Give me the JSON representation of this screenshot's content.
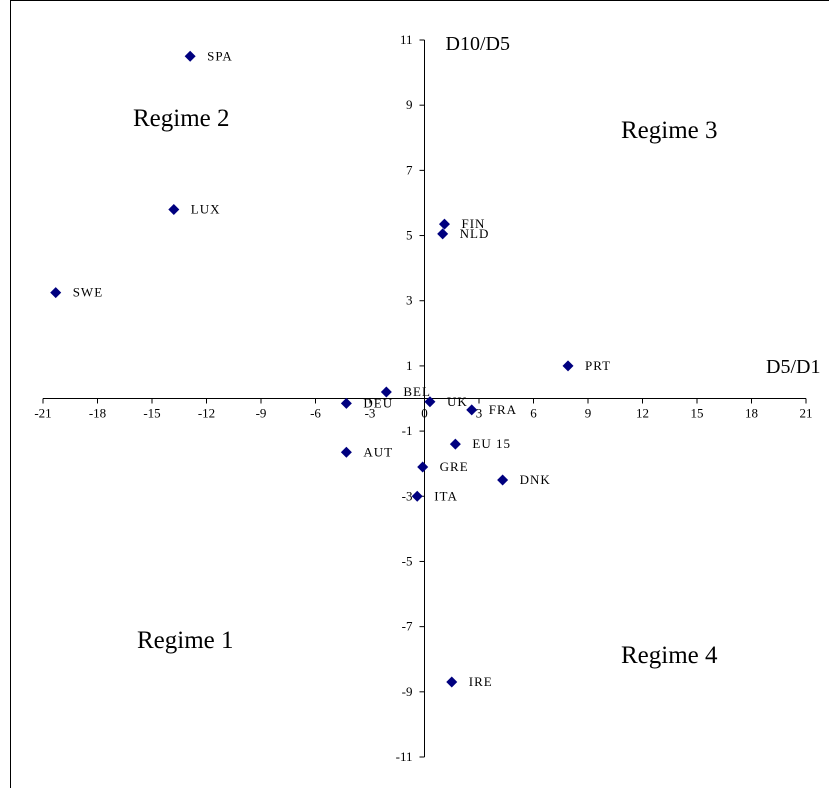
{
  "chart_data": {
    "type": "scatter",
    "xlabel": "D5/D1",
    "ylabel": "D10/D5",
    "xlim": [
      -21,
      21
    ],
    "ylim": [
      -11,
      11
    ],
    "x_ticks": [
      -21,
      -18,
      -15,
      -12,
      -9,
      -6,
      -3,
      0,
      3,
      6,
      9,
      12,
      15,
      18,
      21
    ],
    "y_ticks": [
      -11,
      -9,
      -7,
      -5,
      -3,
      -1,
      1,
      3,
      5,
      7,
      9,
      11
    ],
    "marker_color": "#00007f",
    "grid": false,
    "legend": "none",
    "points": [
      {
        "label": "SPA",
        "x": -12.9,
        "y": 10.5
      },
      {
        "label": "LUX",
        "x": -13.8,
        "y": 5.8
      },
      {
        "label": "SWE",
        "x": -20.3,
        "y": 3.25
      },
      {
        "label": "FIN",
        "x": 1.1,
        "y": 5.35
      },
      {
        "label": "NLD",
        "x": 1.0,
        "y": 5.05
      },
      {
        "label": "PRT",
        "x": 7.9,
        "y": 1.0
      },
      {
        "label": "BEL",
        "x": -2.1,
        "y": 0.2
      },
      {
        "label": "DEU",
        "x": -4.3,
        "y": -0.15
      },
      {
        "label": "UK",
        "x": 0.3,
        "y": -0.1
      },
      {
        "label": "FRA",
        "x": 2.6,
        "y": -0.35
      },
      {
        "label": "EU 15",
        "x": 1.7,
        "y": -1.4
      },
      {
        "label": "AUT",
        "x": -4.3,
        "y": -1.65
      },
      {
        "label": "GRE",
        "x": -0.1,
        "y": -2.1
      },
      {
        "label": "DNK",
        "x": 4.3,
        "y": -2.5
      },
      {
        "label": "ITA",
        "x": -0.4,
        "y": -3.0
      },
      {
        "label": "IRE",
        "x": 1.5,
        "y": -8.7
      }
    ],
    "annotations": [
      {
        "text": "Regime 1",
        "quadrant": "bottom-left"
      },
      {
        "text": "Regime 2",
        "quadrant": "top-left"
      },
      {
        "text": "Regime 3",
        "quadrant": "top-right"
      },
      {
        "text": "Regime 4",
        "quadrant": "bottom-right"
      }
    ]
  }
}
